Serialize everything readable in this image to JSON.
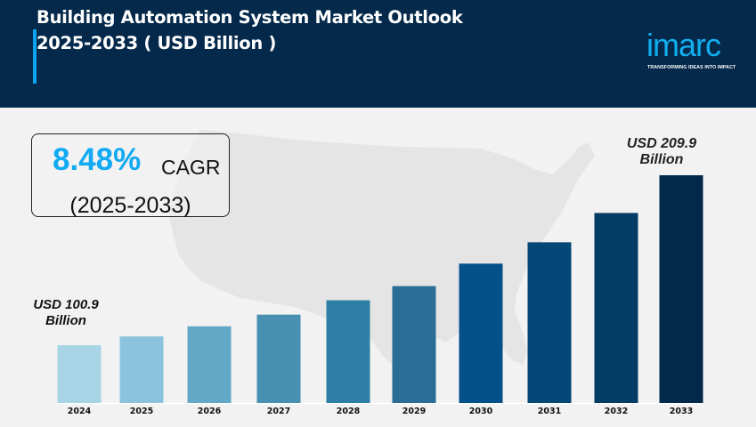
{
  "header": {
    "title_line1": "Building Automation System Market Outlook",
    "title_line2": "2025-2033 ( USD Billion )"
  },
  "logo": {
    "name": "imarc",
    "tagline": "TRANSFORMING IDEAS INTO IMPACT"
  },
  "cagr": {
    "value": "8.48%",
    "label": "CAGR",
    "period": "(2025-2033)"
  },
  "annotations": {
    "start_line1": "USD 100.9",
    "start_line2": "Billion",
    "end_line1": "USD 209.9",
    "end_line2": "Billion"
  },
  "colors": {
    "header_bg": "#04294b",
    "accent": "#0aa4f0",
    "cagr_value": "#12aaf2",
    "bar_colors": [
      "#a8d5e6",
      "#8cc3dc",
      "#63a8c6",
      "#4890b1",
      "#2e7fa5",
      "#2a6e97",
      "#045089",
      "#034876",
      "#033c64",
      "#02294a"
    ]
  },
  "chart_data": {
    "type": "bar",
    "title": "Building Automation System Market Outlook 2025-2033 ( USD Billion )",
    "xlabel": "",
    "ylabel": "USD Billion",
    "categories": [
      "2024",
      "2025",
      "2026",
      "2027",
      "2028",
      "2029",
      "2030",
      "2031",
      "2032",
      "2033"
    ],
    "values": [
      100.9,
      106.5,
      113.0,
      120.5,
      129.7,
      138.8,
      153.2,
      166.9,
      185.7,
      209.9
    ],
    "ylim": [
      0,
      230
    ],
    "grid": false,
    "legend": "none",
    "annotations": [
      {
        "category": "2024",
        "text": "USD 100.9 Billion"
      },
      {
        "category": "2033",
        "text": "USD 209.9 Billion"
      }
    ]
  }
}
